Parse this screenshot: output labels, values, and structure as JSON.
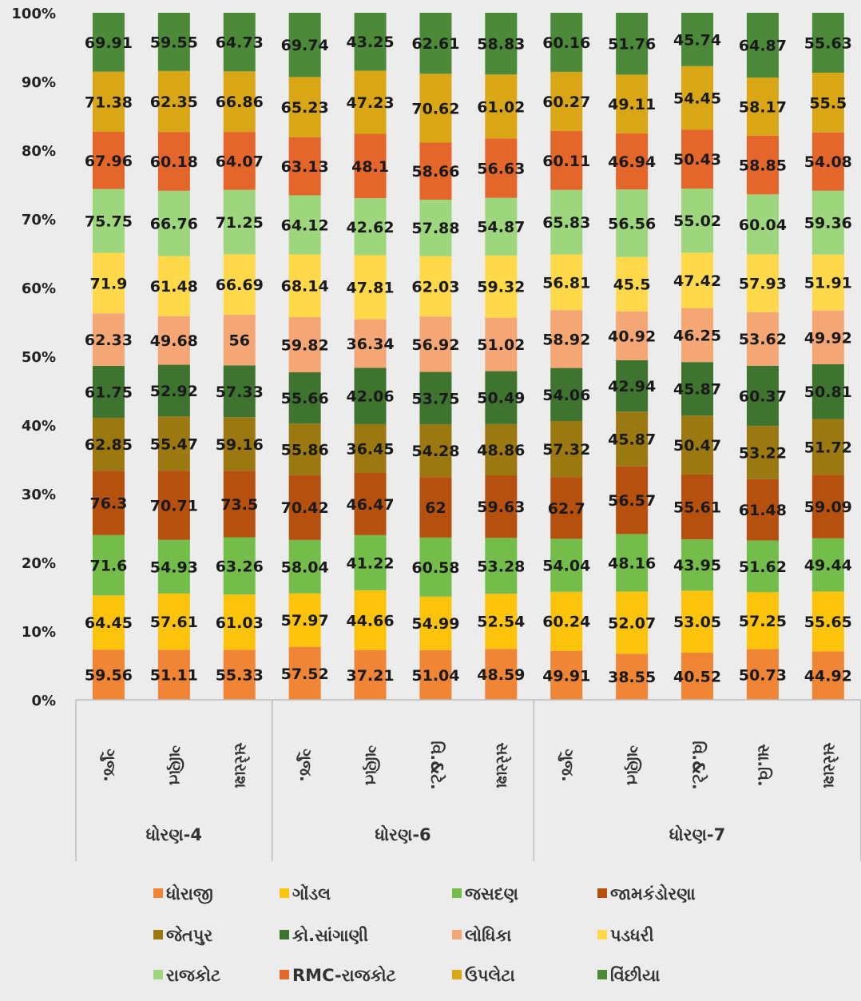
{
  "chart_data": {
    "type": "bar",
    "stacking": "percent",
    "ylim": [
      0,
      100
    ],
    "y_ticks": [
      "0%",
      "10%",
      "20%",
      "30%",
      "40%",
      "50%",
      "60%",
      "70%",
      "80%",
      "90%",
      "100%"
    ],
    "grid": false,
    "legend_position": "bottom",
    "groups": [
      {
        "name": "ધોરણ-4",
        "categories": [
          "ગુજ.",
          "ગણિત",
          "સરેરાશ"
        ]
      },
      {
        "name": "ધોરણ-6",
        "categories": [
          "ગુજ.",
          "ગણિત",
          "વિ.&ટે.",
          "સરેરાશ"
        ]
      },
      {
        "name": "ધોરણ-7",
        "categories": [
          "ગુજ.",
          "ગણિત",
          "વિ.&ટે.",
          "સા.વિ.",
          "સરેરાશ"
        ]
      }
    ],
    "categories": [
      "ગુજ.",
      "ગણિત",
      "સરેરાશ",
      "ગુજ.",
      "ગણિત",
      "વિ.&ટે.",
      "સરેરાશ",
      "ગુજ.",
      "ગણિત",
      "વિ.&ટે.",
      "સા.વિ.",
      "સરેરાશ"
    ],
    "series": [
      {
        "name": "ધોરાજી",
        "color": "#f08536",
        "values": [
          59.56,
          51.11,
          55.33,
          57.52,
          37.21,
          51.04,
          48.59,
          49.91,
          38.55,
          40.52,
          50.73,
          44.92
        ]
      },
      {
        "name": "ગોંડલ",
        "color": "#fcc30c",
        "values": [
          64.45,
          57.61,
          61.03,
          57.97,
          44.66,
          54.99,
          52.54,
          60.24,
          52.07,
          53.05,
          57.25,
          55.65
        ]
      },
      {
        "name": "જસદણ",
        "color": "#74bd4a",
        "values": [
          71.6,
          54.93,
          63.26,
          58.04,
          41.22,
          60.58,
          53.28,
          54.04,
          48.16,
          43.95,
          51.62,
          49.44
        ]
      },
      {
        "name": "જામકંડોરણા",
        "color": "#b6500f",
        "values": [
          76.3,
          70.71,
          73.5,
          70.42,
          46.47,
          62,
          59.63,
          62.7,
          56.57,
          55.61,
          61.48,
          59.09
        ]
      },
      {
        "name": "જેતપુર",
        "color": "#9b7810",
        "values": [
          62.85,
          55.47,
          59.16,
          55.86,
          36.45,
          54.28,
          48.86,
          57.32,
          45.87,
          50.47,
          53.22,
          51.72
        ]
      },
      {
        "name": "કો.સાંગાણી",
        "color": "#3f7430",
        "values": [
          61.75,
          52.92,
          57.33,
          55.66,
          42.06,
          53.75,
          50.49,
          54.06,
          42.94,
          45.87,
          60.37,
          50.81
        ]
      },
      {
        "name": "લોધિકા",
        "color": "#f4a774",
        "values": [
          62.33,
          49.68,
          56,
          59.82,
          36.34,
          56.92,
          51.02,
          58.92,
          40.92,
          46.25,
          53.62,
          49.92
        ]
      },
      {
        "name": "પડધરી",
        "color": "#ffd94a",
        "values": [
          71.9,
          61.48,
          66.69,
          68.14,
          47.81,
          62.03,
          59.32,
          56.81,
          45.5,
          47.42,
          57.93,
          51.91
        ]
      },
      {
        "name": "રાજકોટ",
        "color": "#9ed67d",
        "values": [
          75.75,
          66.76,
          71.25,
          64.12,
          42.62,
          57.88,
          54.87,
          65.83,
          56.56,
          55.02,
          60.04,
          59.36
        ]
      },
      {
        "name": "RMC-રાજકોટ",
        "color": "#e4662a",
        "values": [
          67.96,
          60.18,
          64.07,
          63.13,
          48.1,
          58.66,
          56.63,
          60.11,
          46.94,
          50.43,
          58.85,
          54.08
        ]
      },
      {
        "name": "ઉપલેટા",
        "color": "#d9a615",
        "values": [
          71.38,
          62.35,
          66.86,
          65.23,
          47.23,
          70.62,
          61.02,
          60.27,
          49.11,
          54.45,
          58.17,
          55.5
        ]
      },
      {
        "name": "વિંછીયા",
        "color": "#4c8a3a",
        "values": [
          69.91,
          59.55,
          64.73,
          69.74,
          43.25,
          62.61,
          58.83,
          60.16,
          51.76,
          45.74,
          64.87,
          55.63
        ]
      }
    ]
  }
}
